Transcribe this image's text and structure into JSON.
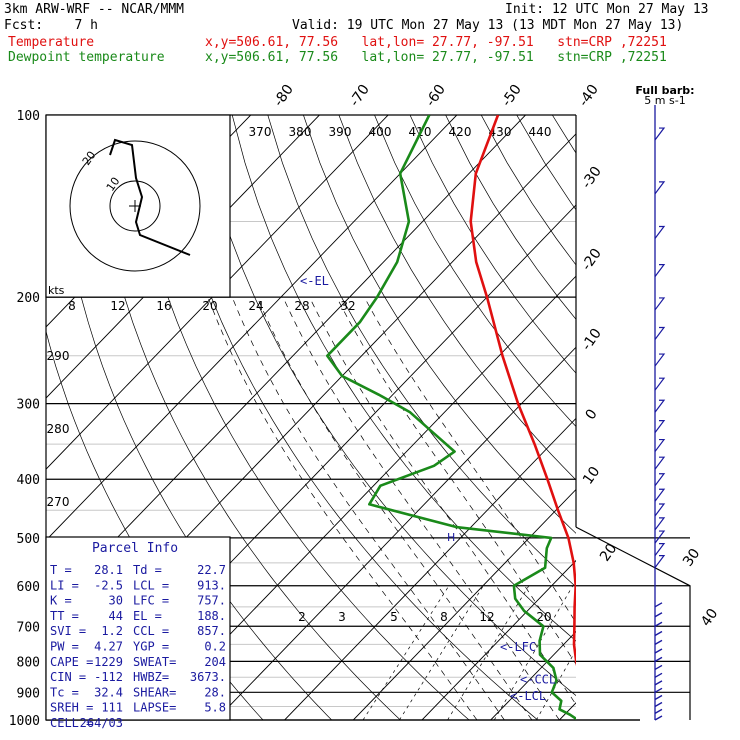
{
  "header": {
    "model": "3km ARW-WRF -- NCAR/MMM",
    "init": "Init: 12 UTC Mon 27 May 13",
    "fcst": "Fcst:    7 h",
    "valid": "Valid: 19 UTC Mon 27 May 13 (13 MDT Mon 27 May 13)",
    "lines": [
      {
        "label": "Temperature",
        "info": "x,y=506.61, 77.56   lat,lon= 27.77, -97.51   stn=CRP ,72251",
        "color": "#e01010"
      },
      {
        "label": "Dewpoint temperature",
        "info": "x,y=506.61, 77.56   lat,lon= 27.77, -97.51   stn=CRP ,72251",
        "color": "#1a8a1a"
      }
    ]
  },
  "chart_data": {
    "type": "line",
    "title": "",
    "pressure_levels": [
      100,
      200,
      300,
      400,
      500,
      600,
      700,
      800,
      900,
      1000
    ],
    "isotherm_labels": [
      -80,
      -70,
      -60,
      -50,
      -40,
      -30,
      -20,
      -10,
      0,
      10,
      20,
      30,
      40
    ],
    "theta_e_labels": [
      370,
      380,
      390,
      400,
      410,
      420,
      430,
      440
    ],
    "theta_labels": [
      290,
      280,
      270
    ],
    "mixing_ratio_labels": [
      2,
      3,
      5,
      8,
      12,
      20
    ],
    "hodograph": {
      "units": "kts",
      "ring_labels": [
        "10",
        "20"
      ],
      "speed_labels": [
        "8",
        "12",
        "16",
        "20",
        "24",
        "28",
        "32"
      ]
    },
    "barb_legend": {
      "label": "Full barb:",
      "value": "5 m s-1"
    },
    "levels": [
      {
        "label": "<-EL",
        "p": 188
      },
      {
        "label": "<-LFC",
        "p": 757
      },
      {
        "label": "<-CCL",
        "p": 857
      },
      {
        "label": "<-LCL",
        "p": 913
      }
    ],
    "hw_label": "H",
    "series": [
      {
        "name": "Temperature",
        "color": "#e01010",
        "points": [
          [
            1000,
            28.1
          ],
          [
            980,
            25.5
          ],
          [
            950,
            23.0
          ],
          [
            900,
            20.0
          ],
          [
            850,
            17.0
          ],
          [
            800,
            14.2
          ],
          [
            750,
            11.5
          ],
          [
            700,
            9.0
          ],
          [
            650,
            6.3
          ],
          [
            600,
            3.5
          ],
          [
            550,
            0.0
          ],
          [
            500,
            -4.3
          ],
          [
            450,
            -9.7
          ],
          [
            400,
            -15.6
          ],
          [
            350,
            -22.4
          ],
          [
            300,
            -30.5
          ],
          [
            250,
            -39.5
          ],
          [
            200,
            -50.0
          ],
          [
            175,
            -56.5
          ],
          [
            150,
            -63.0
          ],
          [
            125,
            -69.0
          ],
          [
            100,
            -74.0
          ]
        ]
      },
      {
        "name": "Dewpoint temperature",
        "color": "#1a8a1a",
        "points": [
          [
            1000,
            22.7
          ],
          [
            980,
            20.8
          ],
          [
            960,
            18.5
          ],
          [
            930,
            17.6
          ],
          [
            900,
            15.0
          ],
          [
            860,
            14.0
          ],
          [
            820,
            11.8
          ],
          [
            780,
            8.0
          ],
          [
            740,
            6.0
          ],
          [
            700,
            4.5
          ],
          [
            660,
            -0.5
          ],
          [
            630,
            -3.5
          ],
          [
            600,
            -5.5
          ],
          [
            560,
            -3.5
          ],
          [
            520,
            -6.0
          ],
          [
            500,
            -6.8
          ],
          [
            480,
            -22.0
          ],
          [
            440,
            -38.0
          ],
          [
            410,
            -39.0
          ],
          [
            380,
            -34.0
          ],
          [
            360,
            -33.0
          ],
          [
            330,
            -40.0
          ],
          [
            310,
            -45.0
          ],
          [
            290,
            -52.0
          ],
          [
            270,
            -60.0
          ],
          [
            250,
            -65.0
          ],
          [
            220,
            -65.0
          ],
          [
            200,
            -66.0
          ],
          [
            175,
            -68.0
          ],
          [
            150,
            -72.0
          ],
          [
            125,
            -80.0
          ],
          [
            100,
            -84.0
          ]
        ]
      }
    ],
    "parcel_info": {
      "title": "Parcel Info",
      "rows": [
        [
          "T  =",
          "28.1",
          "Td =",
          "22.7"
        ],
        [
          "LI =",
          "-2.5",
          "LCL =",
          "913."
        ],
        [
          "K  =",
          "30",
          "LFC =",
          "757."
        ],
        [
          "TT =",
          "44",
          "EL =",
          "188."
        ],
        [
          "SVI =",
          "1.2",
          "CCL =",
          "857."
        ],
        [
          "PW =",
          "4.27",
          "YGP =",
          "0.2"
        ],
        [
          "CAPE =",
          "1229",
          "SWEAT=",
          "204"
        ],
        [
          "CIN =",
          "-112",
          "HWBZ=",
          "3673."
        ],
        [
          "Tc =",
          "32.4",
          "SHEAR=",
          "28."
        ],
        [
          "SREH =",
          "111",
          "LAPSE=",
          "5.8"
        ],
        [
          "CELL =",
          "264/03",
          "",
          ""
        ]
      ]
    }
  }
}
